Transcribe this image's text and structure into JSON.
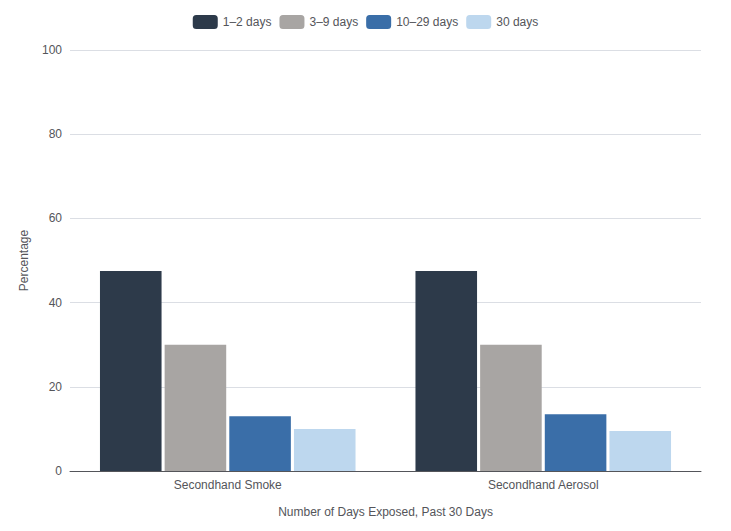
{
  "chart_data": {
    "type": "bar",
    "categories": [
      "Secondhand Smoke",
      "Secondhand Aerosol"
    ],
    "series": [
      {
        "name": "1–2 days",
        "values": [
          47.5,
          47.5
        ],
        "color": "#2d3a4a"
      },
      {
        "name": "3–9 days",
        "values": [
          30.0,
          30.0
        ],
        "color": "#a8a5a3"
      },
      {
        "name": "10–29 days",
        "values": [
          13.0,
          13.5
        ],
        "color": "#3a6ea8"
      },
      {
        "name": "30 days",
        "values": [
          10.0,
          9.5
        ],
        "color": "#bdd7ee"
      }
    ],
    "xlabel": "Number of Days Exposed, Past 30 Days",
    "ylabel": "Percentage",
    "ylim": [
      0,
      100
    ],
    "yticks": [
      0,
      20,
      40,
      60,
      80,
      100
    ],
    "grid": true,
    "legend": "top"
  }
}
